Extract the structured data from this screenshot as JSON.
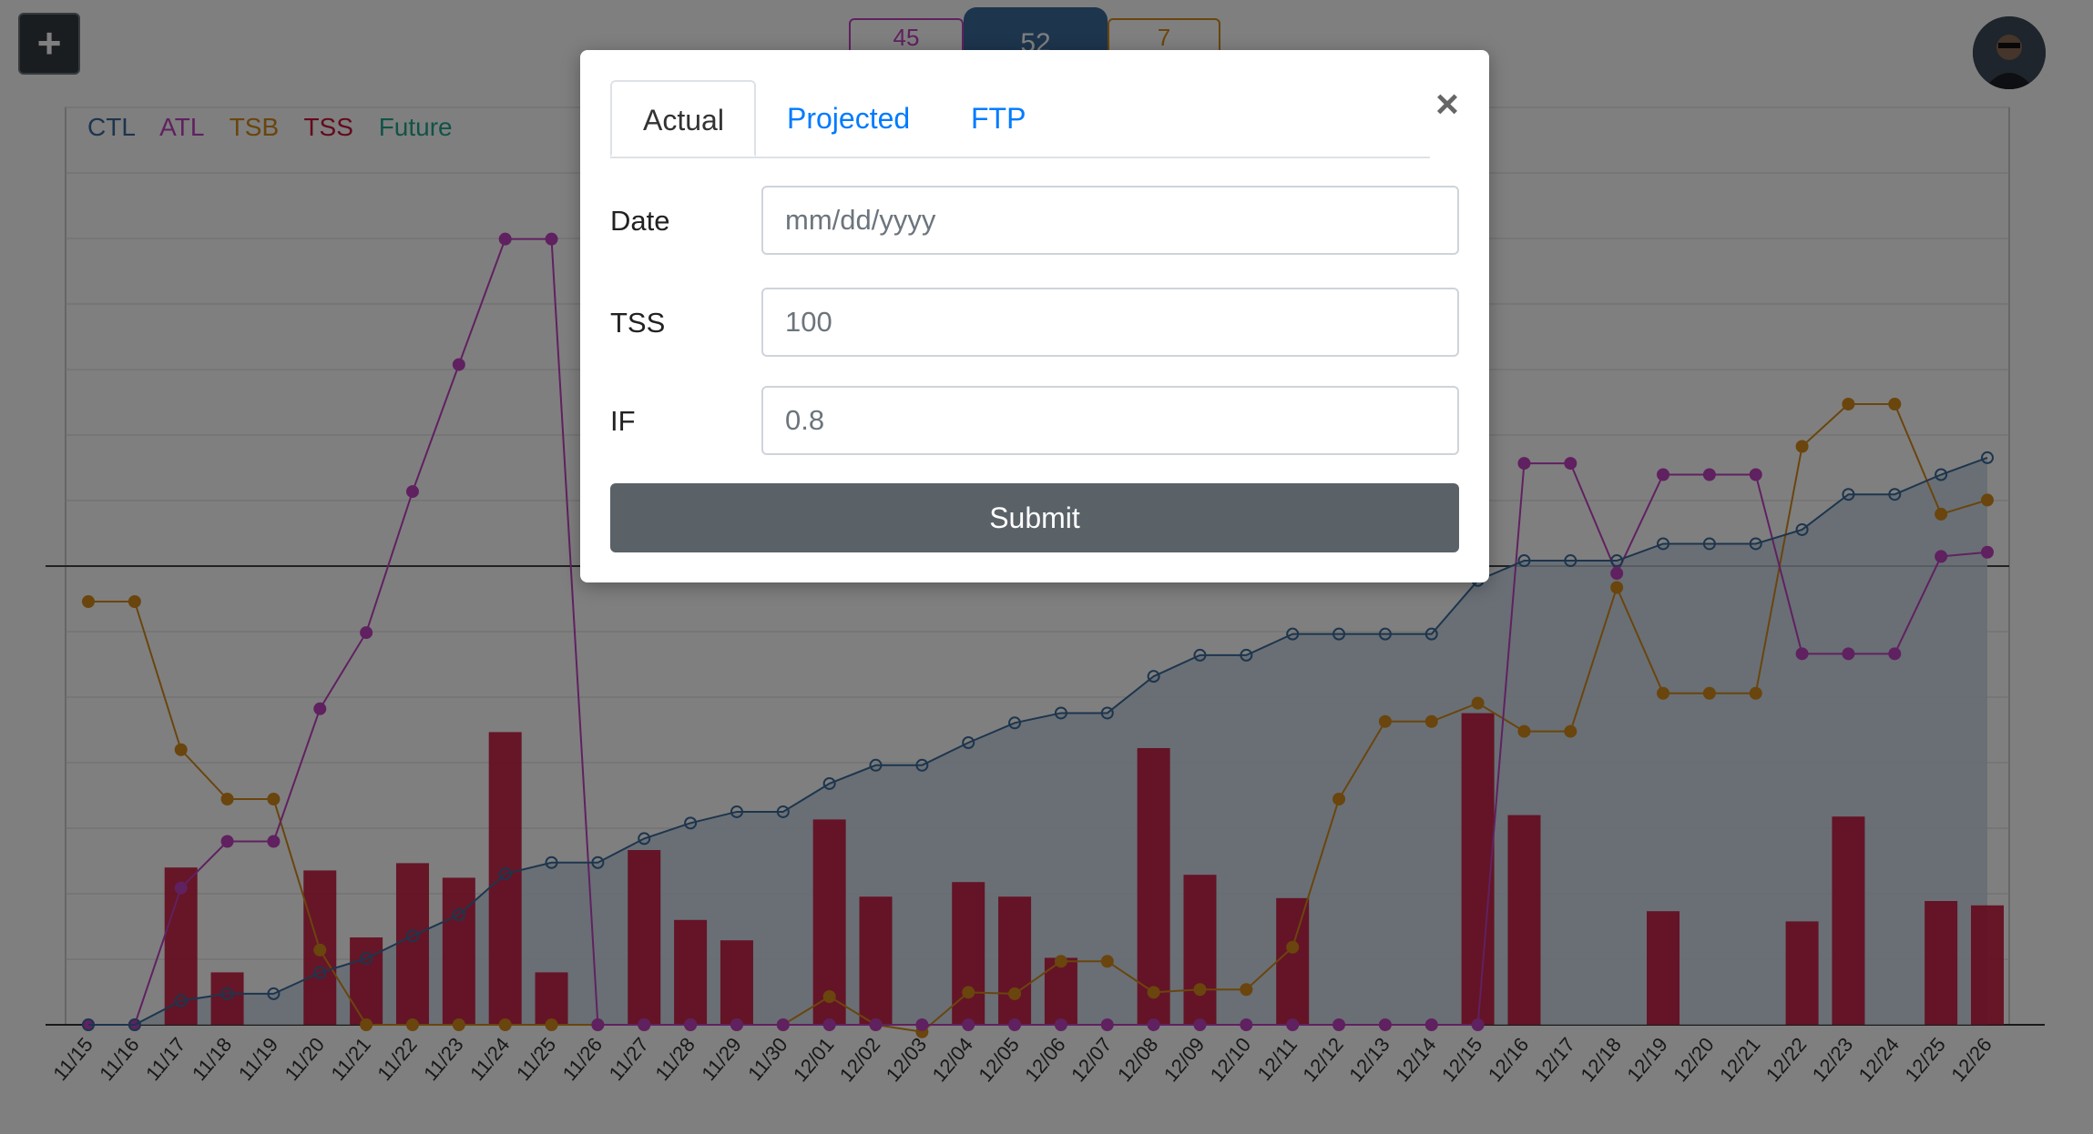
{
  "toolbar": {
    "add_label": "+"
  },
  "stats": {
    "atl": "45",
    "ctl": "52",
    "tsb": "7"
  },
  "legend": [
    "CTL",
    "ATL",
    "TSB",
    "TSS",
    "Future"
  ],
  "colors": {
    "ctl": "#3b6b9a",
    "atl": "#c042c0",
    "tsb": "#d48a1a",
    "tss": "#c8153b",
    "future": "#23a78f"
  },
  "modal": {
    "tabs": [
      "Actual",
      "Projected",
      "FTP"
    ],
    "active_tab": "Actual",
    "close_icon": "close-icon",
    "fields": {
      "date": {
        "label": "Date",
        "placeholder": "mm/dd/yyyy"
      },
      "tss": {
        "label": "TSS",
        "placeholder": "100"
      },
      "if": {
        "label": "IF",
        "placeholder": "0.8"
      }
    },
    "submit_label": "Submit"
  },
  "chart_data": {
    "type": "bar",
    "categories": [
      "11/15",
      "11/16",
      "11/17",
      "11/18",
      "11/19",
      "11/20",
      "11/21",
      "11/22",
      "11/23",
      "11/24",
      "11/25",
      "11/26",
      "11/27",
      "11/28",
      "11/29",
      "11/30",
      "12/01",
      "12/02",
      "12/03",
      "12/04",
      "12/05",
      "12/06",
      "12/07",
      "12/08",
      "12/09",
      "12/10",
      "12/11",
      "12/12",
      "12/13",
      "12/14",
      "12/15",
      "12/16",
      "12/17",
      "12/18",
      "12/19",
      "12/20",
      "12/21",
      "12/22",
      "12/23",
      "12/24",
      "12/25",
      "12/26"
    ],
    "series": [
      {
        "name": "TSS",
        "type": "bar",
        "values": [
          0,
          0,
          108,
          36,
          0,
          106,
          60,
          111,
          101,
          201,
          36,
          0,
          120,
          72,
          58,
          0,
          141,
          88,
          0,
          98,
          88,
          46,
          0,
          190,
          103,
          0,
          87,
          0,
          0,
          0,
          214,
          144,
          0,
          0,
          78,
          0,
          0,
          71,
          143,
          0,
          85,
          82
        ]
      },
      {
        "name": "CTL",
        "type": "line",
        "values": [
          0,
          0,
          17,
          22,
          22,
          37,
          47,
          63,
          78,
          107,
          115,
          115,
          132,
          143,
          151,
          151,
          171,
          184,
          184,
          200,
          214,
          221,
          221,
          247,
          262,
          262,
          277,
          277,
          277,
          277,
          315,
          329,
          329,
          329,
          341,
          341,
          341,
          351,
          376,
          376,
          390,
          402
        ]
      },
      {
        "name": "ATL",
        "type": "line",
        "values": [
          0,
          0,
          97,
          130,
          130,
          224,
          278,
          378,
          468,
          557,
          557,
          0,
          0,
          0,
          0,
          0,
          0,
          0,
          0,
          0,
          0,
          0,
          0,
          0,
          0,
          0,
          0,
          0,
          0,
          0,
          0,
          398,
          398,
          320,
          390,
          390,
          390,
          263,
          263,
          263,
          332,
          335
        ]
      },
      {
        "name": "TSB",
        "type": "line",
        "values": [
          300,
          300,
          195,
          160,
          160,
          53,
          0,
          0,
          0,
          0,
          0,
          0,
          0,
          0,
          0,
          0,
          20,
          0,
          -5,
          23,
          22,
          45,
          45,
          23,
          25,
          25,
          55,
          160,
          215,
          215,
          228,
          208,
          208,
          310,
          235,
          235,
          235,
          410,
          440,
          440,
          362,
          372
        ]
      }
    ]
  }
}
